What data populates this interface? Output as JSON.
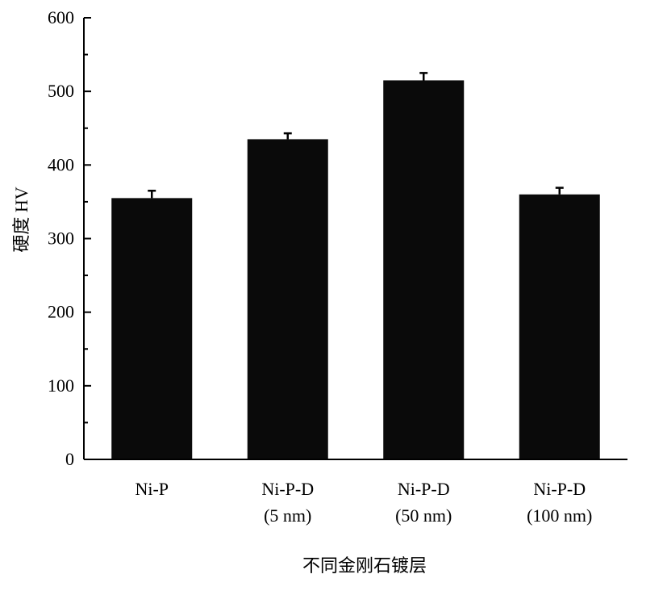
{
  "chart_data": {
    "type": "bar",
    "categories": [
      [
        "Ni-P"
      ],
      [
        "Ni-P-D",
        "(5 nm)"
      ],
      [
        "Ni-P-D",
        "(50 nm)"
      ],
      [
        "Ni-P-D",
        "(100 nm)"
      ]
    ],
    "values": [
      355,
      435,
      515,
      360
    ],
    "errors": [
      10,
      8,
      10,
      9
    ],
    "xlabel": "不同金刚石镀层",
    "ylabel": "硬度 HV",
    "ylim": [
      0,
      600
    ],
    "yticks": [
      0,
      100,
      200,
      300,
      400,
      500,
      600
    ],
    "minor_ticks": true,
    "bar_color": "#0a0a0a",
    "grid": false,
    "legend": "none"
  }
}
